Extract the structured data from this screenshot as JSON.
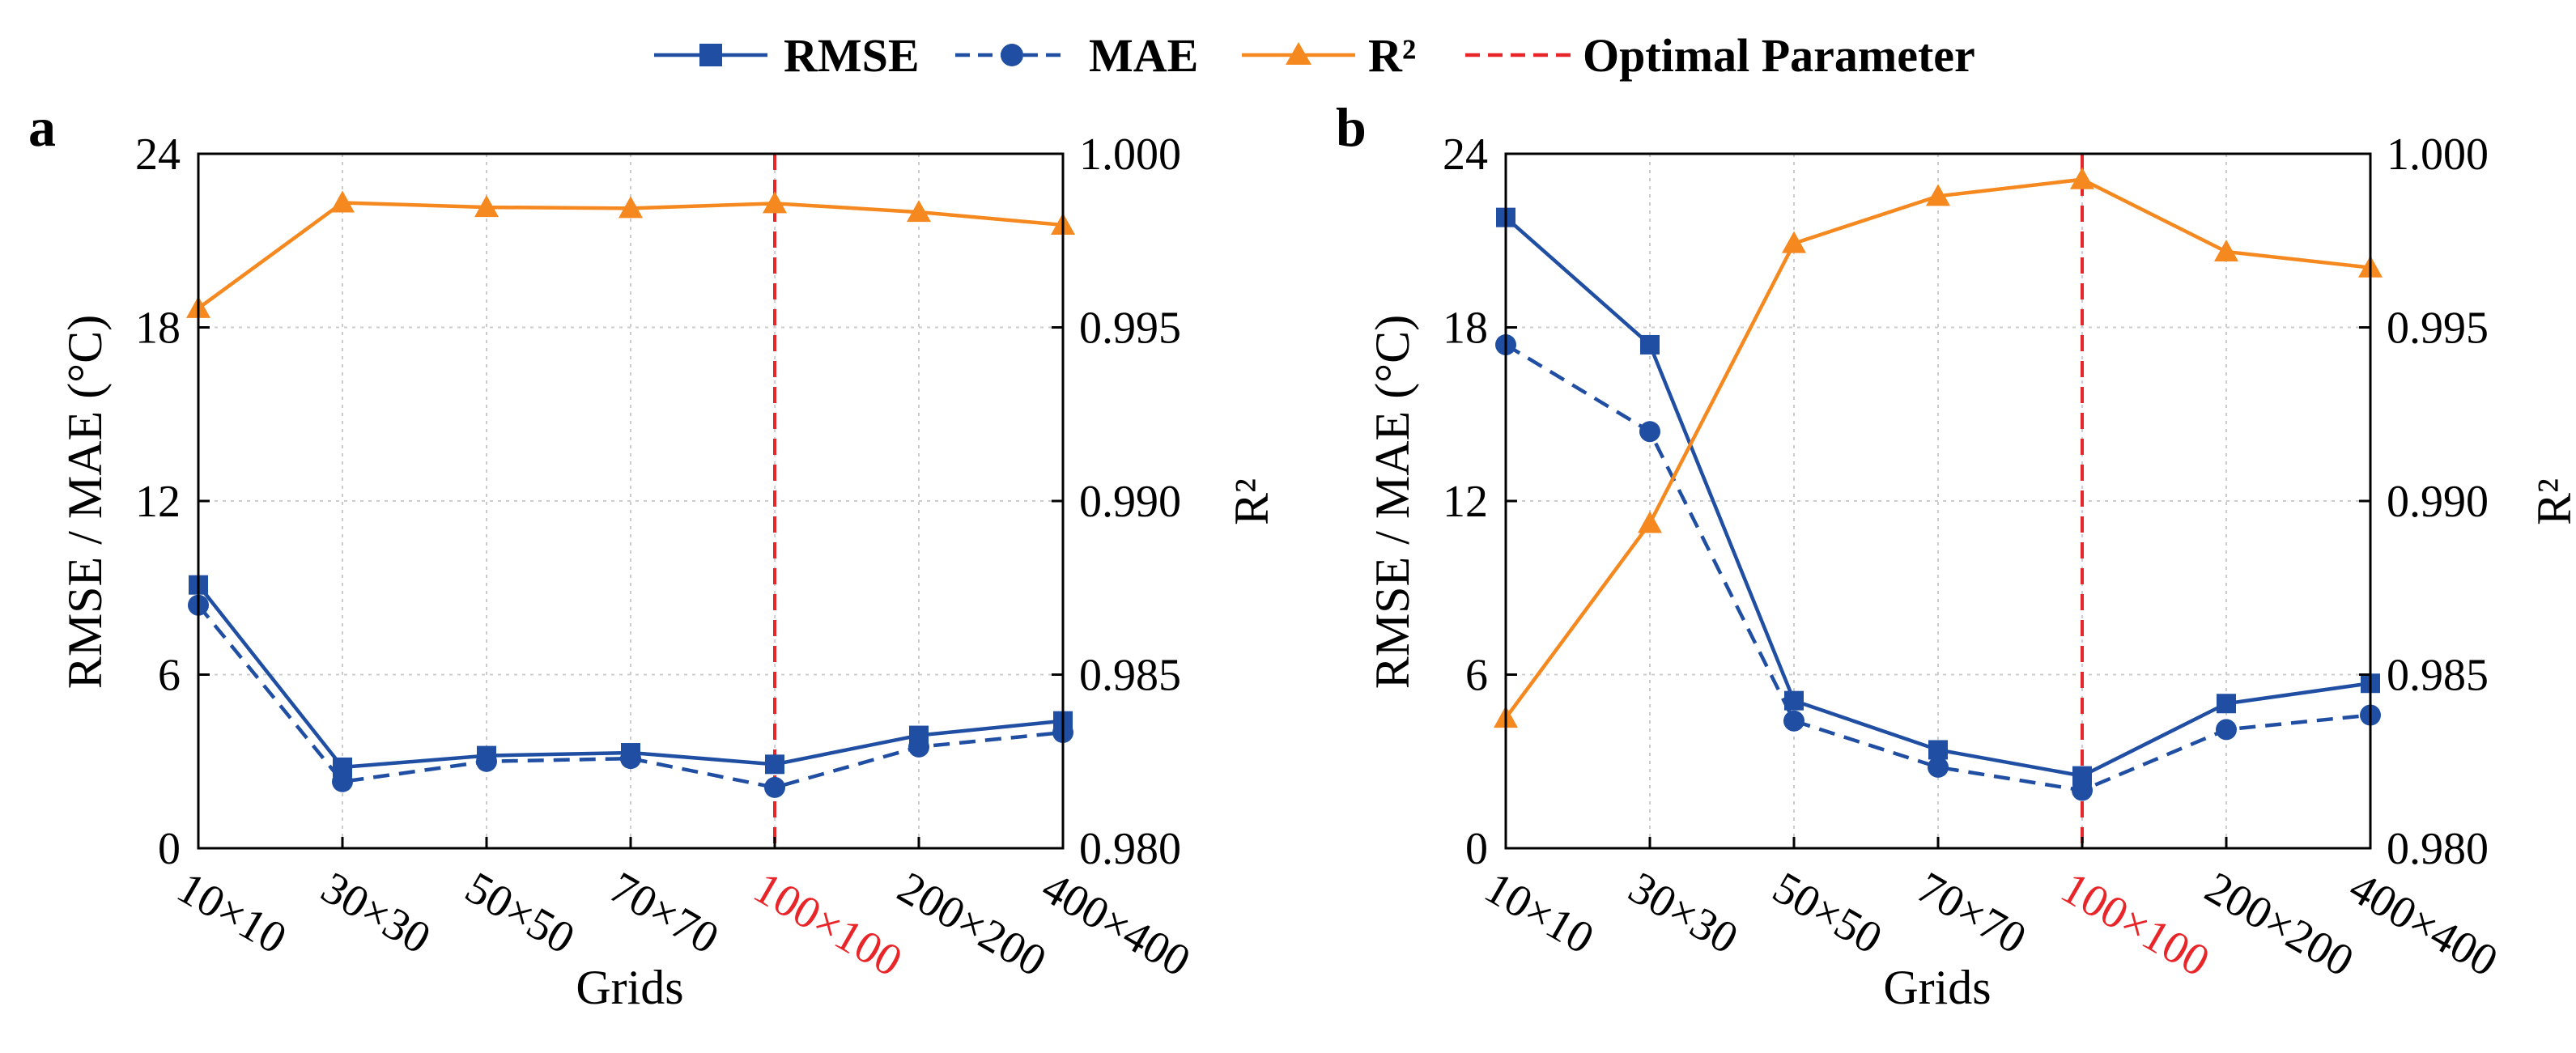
{
  "legend": {
    "rmse": "RMSE",
    "mae": "MAE",
    "r2": "R²",
    "optimal": "Optimal Parameter"
  },
  "colors": {
    "blue": "#1f4ea3",
    "orange": "#f5891f",
    "red": "#e8262a",
    "grid": "#cccccc"
  },
  "chart_data": [
    {
      "type": "line",
      "panel": "a",
      "categories": [
        "10×10",
        "30×30",
        "50×50",
        "70×70",
        "100×100",
        "200×200",
        "400×400"
      ],
      "highlight_category": "100×100",
      "xlabel": "Grids",
      "ylabel": "RMSE / MAE (°C)",
      "y2label": "R²",
      "ylim": [
        0,
        24
      ],
      "yticks": [
        0,
        6,
        12,
        18,
        24
      ],
      "y2lim": [
        0.98,
        1.0
      ],
      "y2ticks": [
        "0.980",
        "0.985",
        "0.990",
        "0.995",
        "1.000"
      ],
      "grid": true,
      "series": [
        {
          "name": "RMSE",
          "axis": "left",
          "values": [
            9.1,
            2.8,
            3.2,
            3.3,
            2.9,
            3.9,
            4.4
          ]
        },
        {
          "name": "MAE",
          "axis": "left",
          "values": [
            8.4,
            2.3,
            3.0,
            3.1,
            2.1,
            3.5,
            4.0
          ]
        },
        {
          "name": "R²",
          "axis": "right",
          "values": [
            0.99555,
            0.99859,
            0.99846,
            0.99843,
            0.99857,
            0.99832,
            0.99795
          ]
        }
      ]
    },
    {
      "type": "line",
      "panel": "b",
      "categories": [
        "10×10",
        "30×30",
        "50×50",
        "70×70",
        "100×100",
        "200×200",
        "400×400"
      ],
      "highlight_category": "100×100",
      "xlabel": "Grids",
      "ylabel": "RMSE / MAE (°C)",
      "y2label": "R²",
      "ylim": [
        0,
        24
      ],
      "yticks": [
        0,
        6,
        12,
        18,
        24
      ],
      "y2lim": [
        0.98,
        1.0
      ],
      "y2ticks": [
        "0.980",
        "0.985",
        "0.990",
        "0.995",
        "1.000"
      ],
      "grid": true,
      "series": [
        {
          "name": "RMSE",
          "axis": "left",
          "values": [
            21.8,
            17.4,
            5.1,
            3.4,
            2.5,
            5.0,
            5.7
          ]
        },
        {
          "name": "MAE",
          "axis": "left",
          "values": [
            17.4,
            14.4,
            4.4,
            2.8,
            2.0,
            4.1,
            4.6
          ]
        },
        {
          "name": "R²",
          "axis": "right",
          "values": [
            0.98375,
            0.98936,
            0.99742,
            0.99878,
            0.99926,
            0.99718,
            0.99672
          ]
        }
      ]
    }
  ]
}
